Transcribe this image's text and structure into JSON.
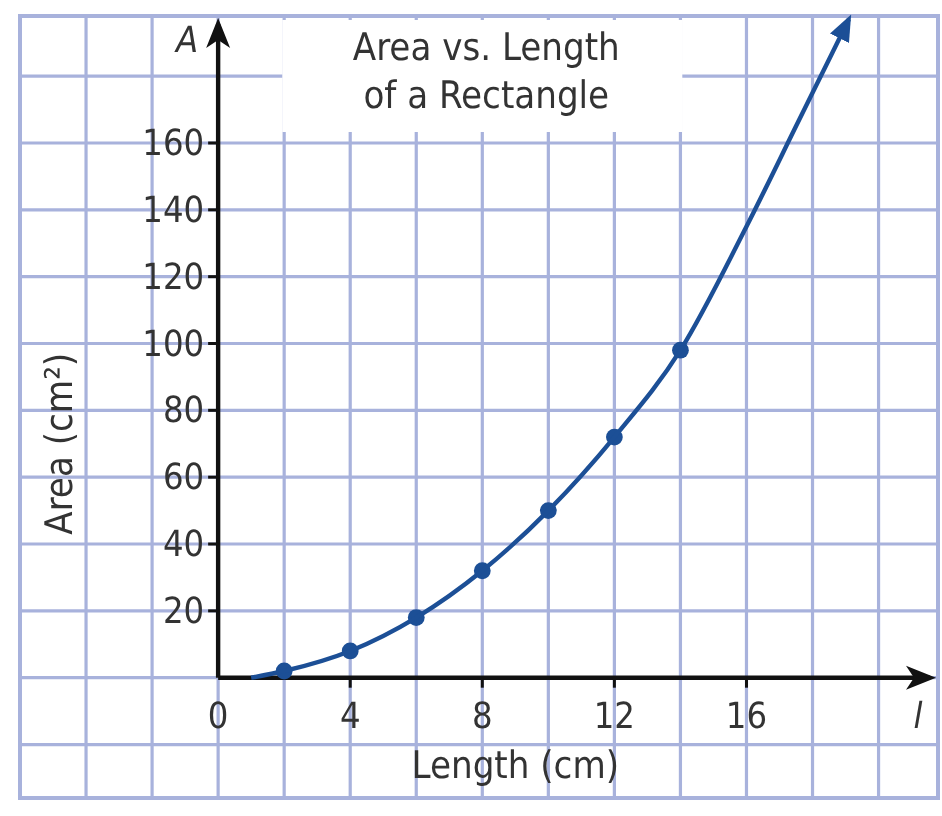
{
  "chart_data": {
    "type": "scatter",
    "title": "Area vs. Length\nof a Rectangle",
    "xlabel": "Length (cm)",
    "ylabel": "Area (cm²)",
    "annotations": [
      "A",
      "l"
    ],
    "xlim": [
      -6,
      21.8
    ],
    "ylim": [
      -36,
      198
    ],
    "xticks": [
      {
        "value": -6,
        "label": null
      },
      {
        "value": -4,
        "label": null
      },
      {
        "value": -2,
        "label": null
      },
      {
        "value": 0,
        "label": "0"
      },
      {
        "value": 2,
        "label": null
      },
      4,
      {
        "value": 6,
        "label": null
      },
      8,
      {
        "value": 10,
        "label": null
      },
      12,
      {
        "value": 14,
        "label": null
      },
      16,
      {
        "value": 18,
        "label": null
      },
      {
        "value": 20,
        "label": null
      }
    ],
    "yticks": [
      {
        "value": -20,
        "label": null
      },
      {
        "value": 0,
        "label": null
      },
      20,
      40,
      60,
      80,
      100,
      120,
      140,
      160,
      {
        "value": 180,
        "label": null
      }
    ],
    "grid": true,
    "marker": "circle",
    "series": [
      {
        "color": "#1c4f96",
        "x": [
          2,
          4,
          6,
          8,
          10,
          12,
          14
        ],
        "values": [
          2,
          8,
          18,
          32,
          50,
          72,
          98
        ]
      },
      {
        "type": "line",
        "color": "#1c4f96",
        "marker": "none",
        "x": [
          1,
          2,
          4,
          6,
          8,
          10,
          12,
          14,
          16,
          17.6,
          19.1
        ],
        "values": [
          0,
          2,
          8,
          18,
          32,
          50,
          72,
          98,
          135,
          167,
          197
        ]
      }
    ]
  }
}
